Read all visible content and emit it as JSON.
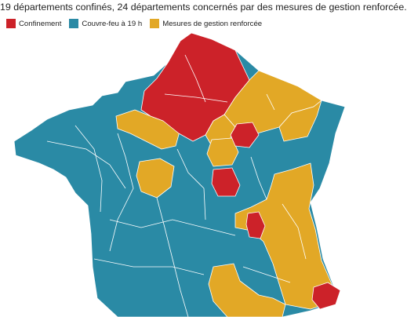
{
  "subtitle": "19 départements confinés, 24 départements concernés par des mesures de gestion renforcée.",
  "legend": [
    {
      "label": "Confinement",
      "color": "#cc2229"
    },
    {
      "label": "Couvre-feu à 19 h",
      "color": "#2a8aa5"
    },
    {
      "label": "Mesures de gestion renforcée",
      "color": "#e2a826"
    }
  ],
  "colors": {
    "confinement": "#cc2229",
    "couvre_feu": "#2a8aa5",
    "gestion": "#e2a826",
    "border": "#ffffff"
  }
}
